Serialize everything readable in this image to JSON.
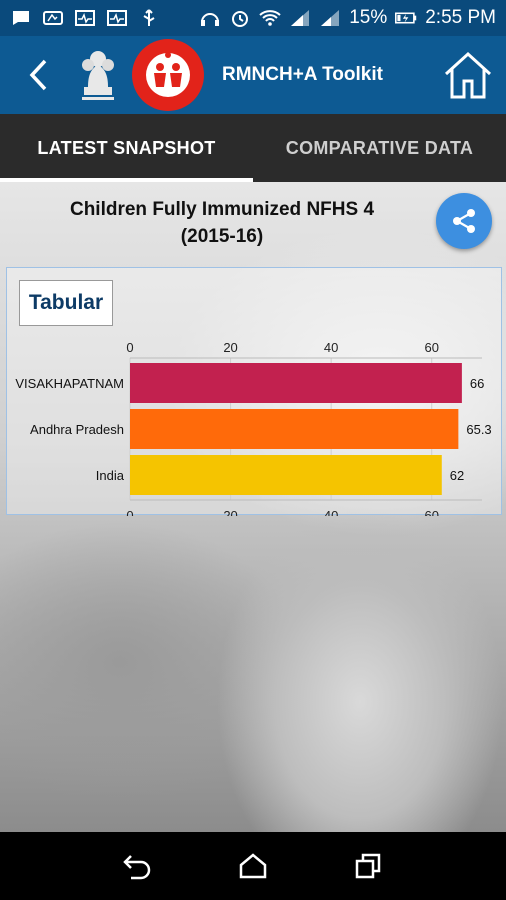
{
  "status_bar": {
    "battery_percent": "15%",
    "time": "2:55 PM",
    "icons": [
      "whatsapp-icon",
      "chat-icon",
      "health-icon",
      "pulse-icon",
      "usb-icon",
      "headphones-icon",
      "alarm-icon",
      "wifi-icon",
      "signal-icon",
      "signal-icon",
      "battery-charging-icon"
    ]
  },
  "app_bar": {
    "title": "RMNCH+A Toolkit"
  },
  "tabs": [
    {
      "label": "LATEST SNAPSHOT",
      "active": true
    },
    {
      "label": "COMPARATIVE DATA",
      "active": false
    }
  ],
  "content": {
    "chart_title_line1": "Children Fully Immunized NFHS 4",
    "chart_title_line2": "(2015-16)",
    "tabular_label": "Tabular"
  },
  "colors": {
    "status_bar": "#0a4a7c",
    "app_bar": "#0d5a93",
    "tabs_bg": "#2b2b2b",
    "share_button": "#3d8fe0"
  },
  "chart_data": {
    "type": "bar",
    "orientation": "horizontal",
    "categories": [
      "VISAKHAPATNAM",
      "Andhra Pradesh",
      "India"
    ],
    "values": [
      66,
      65.3,
      62
    ],
    "value_labels": [
      "66",
      "65.3",
      "62"
    ],
    "colors": [
      "#c2214f",
      "#ff6a0a",
      "#f5c400"
    ],
    "xlim": [
      0,
      70
    ],
    "ticks": [
      "0",
      "20",
      "40",
      "60"
    ],
    "tick_values": [
      0,
      20,
      40,
      60
    ],
    "grid": true
  }
}
